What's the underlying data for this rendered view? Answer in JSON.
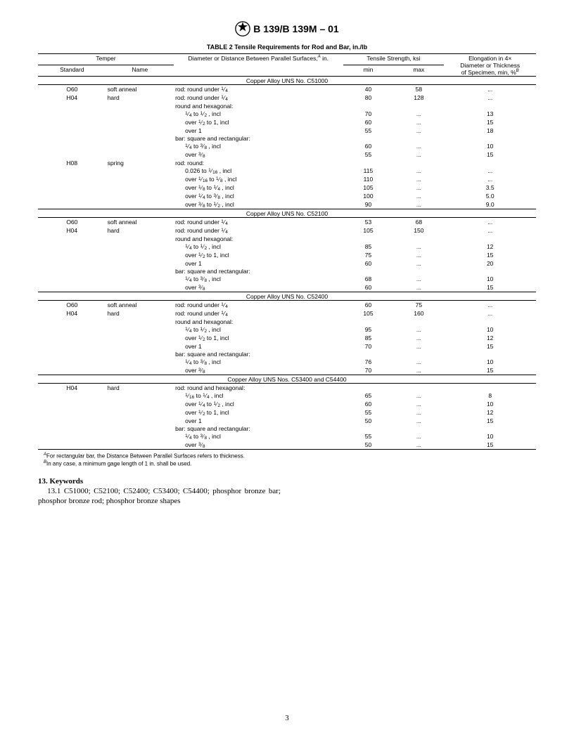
{
  "doc_title": "B 139/B 139M – 01",
  "table_caption": "TABLE 2  Tensile Requirements for Rod and Bar, in./lb",
  "columns": {
    "temper": "Temper",
    "standard": "Standard",
    "name": "Name",
    "diameter": "Diameter or Distance Between Parallel Surfaces,",
    "diameter_unit": " in.",
    "tensile": "Tensile Strength, ksi",
    "min": "min",
    "max": "max",
    "elong_l1": "Elongation in 4×",
    "elong_l2": "Diameter or Thickness",
    "elong_l3": "of Specimen, min, %"
  },
  "sections": [
    {
      "title": "Copper Alloy UNS No. C51000",
      "rows": [
        {
          "std": "O60",
          "name": "soft anneal",
          "diam": "rod: round under 1/4",
          "min": "40",
          "max": "58",
          "el": "..."
        },
        {
          "std": "H04",
          "name": "hard",
          "diam": "rod: round under 1/4",
          "min": "80",
          "max": "128",
          "el": "..."
        },
        {
          "std": "",
          "name": "",
          "diam": "round and hexagonal:",
          "min": "",
          "max": "",
          "el": ""
        },
        {
          "std": "",
          "name": "",
          "diam": "1/4 to 1/2 , incl",
          "indent": 1,
          "min": "70",
          "max": "...",
          "el": "13"
        },
        {
          "std": "",
          "name": "",
          "diam": "over 1/2 to 1, incl",
          "indent": 1,
          "min": "60",
          "max": "...",
          "el": "15"
        },
        {
          "std": "",
          "name": "",
          "diam": "over 1",
          "indent": 1,
          "min": "55",
          "max": "...",
          "el": "18"
        },
        {
          "std": "",
          "name": "",
          "diam": "bar: square and rectangular:",
          "min": "",
          "max": "",
          "el": ""
        },
        {
          "std": "",
          "name": "",
          "diam": "1/4 to 3/8 , incl",
          "indent": 1,
          "min": "60",
          "max": "...",
          "el": "10"
        },
        {
          "std": "",
          "name": "",
          "diam": "over 3/8",
          "indent": 1,
          "min": "55",
          "max": "...",
          "el": "15"
        },
        {
          "std": "H08",
          "name": "spring",
          "diam": "rod: round:",
          "min": "",
          "max": "",
          "el": ""
        },
        {
          "std": "",
          "name": "",
          "diam": "0.026 to 1/16 , incl",
          "indent": 1,
          "min": "115",
          "max": "...",
          "el": "..."
        },
        {
          "std": "",
          "name": "",
          "diam": "over 1/16 to 1/8 , incl",
          "indent": 1,
          "min": "110",
          "max": "...",
          "el": "..."
        },
        {
          "std": "",
          "name": "",
          "diam": "over 1/8 to 1/4 , incl",
          "indent": 1,
          "min": "105",
          "max": "...",
          "el": "3.5"
        },
        {
          "std": "",
          "name": "",
          "diam": "over 1/4 to 3/8 , incl",
          "indent": 1,
          "min": "100",
          "max": "...",
          "el": "5.0"
        },
        {
          "std": "",
          "name": "",
          "diam": "over 3/8 to 1/2 , incl",
          "indent": 1,
          "min": "90",
          "max": "...",
          "el": "9.0"
        }
      ]
    },
    {
      "title": "Copper Alloy UNS No. C52100",
      "rows": [
        {
          "std": "O60",
          "name": "soft anneal",
          "diam": "rod: round under 1/4",
          "min": "53",
          "max": "68",
          "el": "..."
        },
        {
          "std": "H04",
          "name": "hard",
          "diam": "rod: round under 1/4",
          "min": "105",
          "max": "150",
          "el": "..."
        },
        {
          "std": "",
          "name": "",
          "diam": "round and hexagonal:",
          "min": "",
          "max": "",
          "el": ""
        },
        {
          "std": "",
          "name": "",
          "diam": "1/4 to 1/2 , incl",
          "indent": 1,
          "min": "85",
          "max": "...",
          "el": "12"
        },
        {
          "std": "",
          "name": "",
          "diam": "over 1/2 to 1, incl",
          "indent": 1,
          "min": "75",
          "max": "...",
          "el": "15"
        },
        {
          "std": "",
          "name": "",
          "diam": "over 1",
          "indent": 1,
          "min": "60",
          "max": "...",
          "el": "20"
        },
        {
          "std": "",
          "name": "",
          "diam": "bar: square and rectangular:",
          "min": "",
          "max": "",
          "el": ""
        },
        {
          "std": "",
          "name": "",
          "diam": "1/4 to 3/8 , incl",
          "indent": 1,
          "min": "68",
          "max": "...",
          "el": "10"
        },
        {
          "std": "",
          "name": "",
          "diam": "over 3/8",
          "indent": 1,
          "min": "60",
          "max": "...",
          "el": "15"
        }
      ]
    },
    {
      "title": "Copper Alloy UNS No. C52400",
      "rows": [
        {
          "std": "O60",
          "name": "soft anneal",
          "diam": "rod: round under 1/4",
          "min": "60",
          "max": "75",
          "el": "..."
        },
        {
          "std": "H04",
          "name": "hard",
          "diam": "rod: round under 1/4",
          "min": "105",
          "max": "160",
          "el": "..."
        },
        {
          "std": "",
          "name": "",
          "diam": "round and hexagonal:",
          "min": "",
          "max": "",
          "el": ""
        },
        {
          "std": "",
          "name": "",
          "diam": "1/4 to 1/2 , incl",
          "indent": 1,
          "min": "95",
          "max": "...",
          "el": "10"
        },
        {
          "std": "",
          "name": "",
          "diam": "over 1/2 to 1, incl",
          "indent": 1,
          "min": "85",
          "max": "...",
          "el": "12"
        },
        {
          "std": "",
          "name": "",
          "diam": "over 1",
          "indent": 1,
          "min": "70",
          "max": "...",
          "el": "15"
        },
        {
          "std": "",
          "name": "",
          "diam": "bar: square and rectangular:",
          "min": "",
          "max": "",
          "el": ""
        },
        {
          "std": "",
          "name": "",
          "diam": "1/4 to 3/8 , incl",
          "indent": 1,
          "min": "76",
          "max": "...",
          "el": "10"
        },
        {
          "std": "",
          "name": "",
          "diam": "over 3/8",
          "indent": 1,
          "min": "70",
          "max": "...",
          "el": "15"
        }
      ]
    },
    {
      "title": "Copper Alloy UNS Nos. C53400 and C54400",
      "rows": [
        {
          "std": "H04",
          "name": "hard",
          "diam": "rod: round and hexagonal:",
          "min": "",
          "max": "",
          "el": ""
        },
        {
          "std": "",
          "name": "",
          "diam": "1/16 to 1/4 , incl",
          "indent": 1,
          "min": "65",
          "max": "...",
          "el": "8"
        },
        {
          "std": "",
          "name": "",
          "diam": "over 1/4 to 1/2 , incl",
          "indent": 1,
          "min": "60",
          "max": "...",
          "el": "10"
        },
        {
          "std": "",
          "name": "",
          "diam": "over 1/2 to 1, incl",
          "indent": 1,
          "min": "55",
          "max": "...",
          "el": "12"
        },
        {
          "std": "",
          "name": "",
          "diam": "over 1",
          "indent": 1,
          "min": "50",
          "max": "...",
          "el": "15"
        },
        {
          "std": "",
          "name": "",
          "diam": "bar: square and rectangular:",
          "min": "",
          "max": "",
          "el": ""
        },
        {
          "std": "",
          "name": "",
          "diam": "1/4 to 3/8 , incl",
          "indent": 1,
          "min": "55",
          "max": "...",
          "el": "10"
        },
        {
          "std": "",
          "name": "",
          "diam": "over 3/8",
          "indent": 1,
          "min": "50",
          "max": "...",
          "el": "15"
        }
      ]
    }
  ],
  "footnotes": {
    "A": "For rectangular bar, the Distance Between Parallel Surfaces refers to thickness.",
    "B": "In any case, a minimum gage length of 1 in. shall be used."
  },
  "keywords_heading": "13. Keywords",
  "keywords_text": "13.1 C51000; C52100; C52400; C53400; C54400; phosphor bronze bar; phosphor bronze rod; phosphor bronze shapes",
  "page_number": "3"
}
